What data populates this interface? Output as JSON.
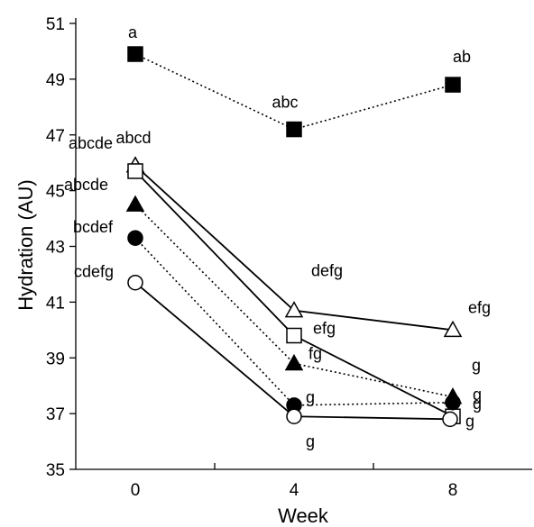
{
  "chart_data": {
    "type": "line",
    "xlabel": "Week",
    "ylabel": "Hydration (AU)",
    "x": [
      0,
      4,
      8
    ],
    "x_ticks": [
      "0",
      "4",
      "8"
    ],
    "xlim": [
      -1.5,
      10
    ],
    "ylim": [
      35,
      51
    ],
    "y_ticks": [
      "35",
      "37",
      "39",
      "41",
      "43",
      "45",
      "47",
      "49",
      "51"
    ],
    "grid": false,
    "series": [
      {
        "marker": "filled-square",
        "line": "dotted",
        "values": [
          49.9,
          47.2,
          48.8
        ],
        "letters": [
          "a",
          "abc",
          "ab"
        ]
      },
      {
        "marker": "open-triangle",
        "line": "solid",
        "values": [
          45.9,
          40.7,
          40.0
        ],
        "letters": [
          "abcde",
          "defg",
          "efg"
        ]
      },
      {
        "marker": "open-square",
        "line": "solid",
        "values": [
          45.7,
          39.8,
          36.9
        ],
        "letters": [
          "abcd",
          "efg",
          "g"
        ]
      },
      {
        "marker": "filled-triangle",
        "line": "dotted",
        "values": [
          44.5,
          38.8,
          37.6
        ],
        "letters": [
          "abcde",
          "fg",
          "g"
        ]
      },
      {
        "marker": "filled-circle",
        "line": "dotted",
        "values": [
          43.3,
          37.3,
          37.4
        ],
        "letters": [
          "bcdef",
          "g",
          "g"
        ]
      },
      {
        "marker": "open-circle",
        "line": "solid",
        "values": [
          41.7,
          36.9,
          36.8
        ],
        "letters": [
          "cdefg",
          "g",
          "g"
        ]
      }
    ]
  }
}
